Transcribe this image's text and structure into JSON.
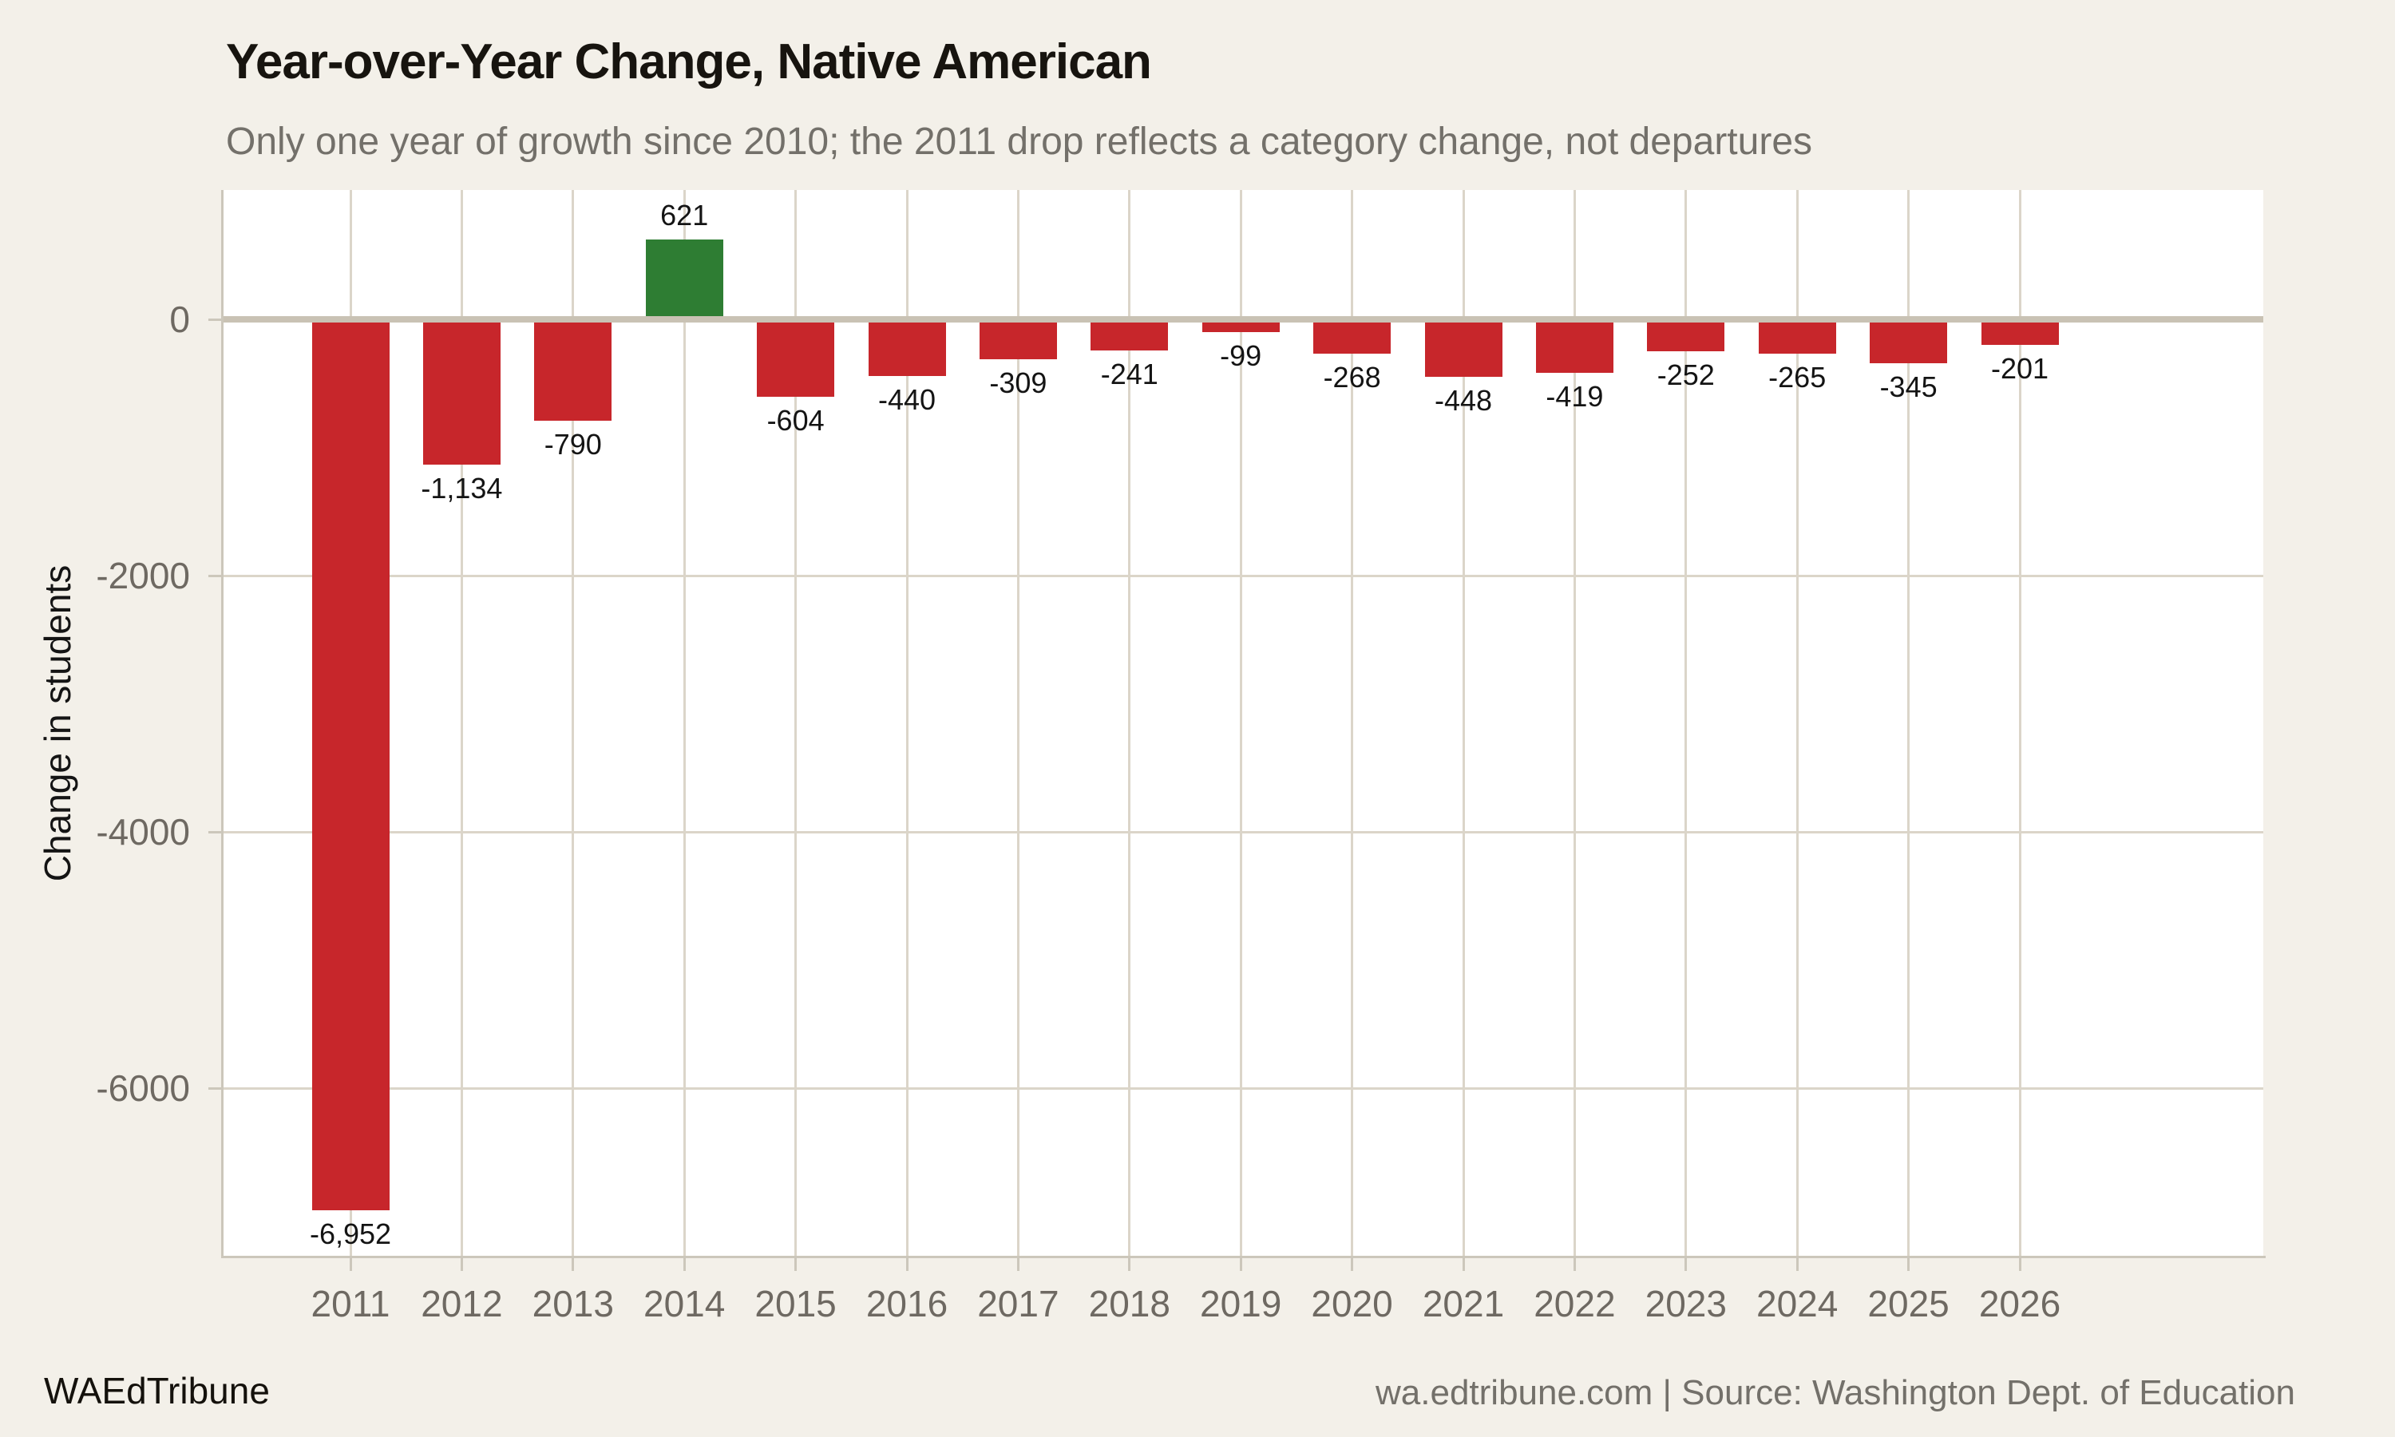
{
  "header": {
    "title": "Year-over-Year Change, Native American",
    "subtitle": "Only one year of growth since 2010; the 2011 drop reflects a category change, not departures"
  },
  "chart_data": {
    "type": "bar",
    "title": "Year-over-Year Change, Native American",
    "subtitle": "Only one year of growth since 2010; the 2011 drop reflects a category change, not departures",
    "categories": [
      "2011",
      "2012",
      "2013",
      "2014",
      "2015",
      "2016",
      "2017",
      "2018",
      "2019",
      "2020",
      "2021",
      "2022",
      "2023",
      "2024",
      "2025",
      "2026"
    ],
    "values": [
      -6952,
      -1134,
      -790,
      621,
      -604,
      -440,
      -309,
      -241,
      -99,
      -268,
      -448,
      -419,
      -252,
      -265,
      -345,
      -201
    ],
    "value_labels": [
      "-6,952",
      "-1,134",
      "-790",
      "621",
      "-604",
      "-440",
      "-309",
      "-241",
      "-99",
      "-268",
      "-448",
      "-419",
      "-252",
      "-265",
      "-345",
      "-201"
    ],
    "xlabel": "",
    "ylabel": "Change in students",
    "yticks": [
      0,
      -2000,
      -4000,
      -6000
    ],
    "ytick_labels": [
      "0",
      "-2000",
      "-4000",
      "-6000"
    ],
    "ylim": [
      -7320,
      1010
    ],
    "grid": true,
    "legend": false,
    "colors": {
      "positive_bar": "#2e7d33",
      "negative_bar": "#c7262b",
      "plot_background": "#ffffff",
      "page_background": "#f3f0e9",
      "zero_line": "#c9c2b4",
      "gridline": "#dbd5c9"
    }
  },
  "footer": {
    "brand": "WAEdTribune",
    "attribution": "wa.edtribune.com | Source: Washington Dept. of Education"
  }
}
